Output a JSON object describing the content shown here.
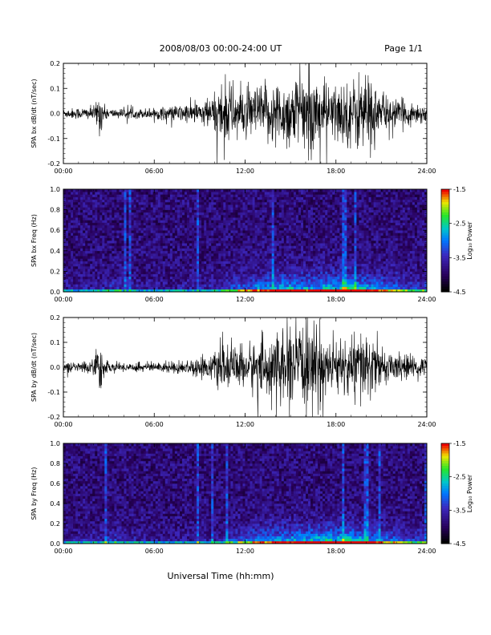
{
  "header": {
    "title": "2008/08/03  00:00-24:00 UT",
    "page": "Page 1/1"
  },
  "xlabel": "Universal Time (hh:mm)",
  "chart_data": [
    {
      "type": "line",
      "ylabel": "SPA bx dB/dt (nT/sec)",
      "xlim": [
        0,
        24
      ],
      "x_ticks": [
        "00:00",
        "06:00",
        "12:00",
        "18:00",
        "24:00"
      ],
      "ylim": [
        -0.2,
        0.2
      ],
      "y_ticks": [
        "-0.2",
        "-0.1",
        "0.0",
        "0.1",
        "0.2"
      ],
      "color": "#000000",
      "series": [
        {
          "x": [
            0,
            1,
            2,
            2.5,
            2.6,
            3,
            4,
            5,
            6,
            7,
            8,
            9,
            10,
            10.5,
            11,
            12,
            13,
            14,
            15,
            16,
            17,
            17.5,
            18,
            19,
            20,
            21,
            22,
            23,
            24
          ],
          "amplitude": [
            0.02,
            0.025,
            0.03,
            0.1,
            0.04,
            0.02,
            0.02,
            0.02,
            0.025,
            0.03,
            0.04,
            0.05,
            0.08,
            0.15,
            0.13,
            0.1,
            0.12,
            0.14,
            0.15,
            0.17,
            0.16,
            0.12,
            0.13,
            0.14,
            0.2,
            0.08,
            0.06,
            0.05,
            0.04
          ]
        }
      ]
    },
    {
      "type": "heatmap",
      "ylabel": "SPA bx Freq (Hz)",
      "xlim": [
        0,
        24
      ],
      "x_ticks": [
        "00:00",
        "06:00",
        "12:00",
        "18:00",
        "24:00"
      ],
      "ylim": [
        0,
        1.0
      ],
      "y_ticks": [
        "0.0",
        "0.2",
        "0.4",
        "0.6",
        "0.8",
        "1.0"
      ],
      "colorbar": {
        "label": "Log₁₀ Power",
        "range": [
          -4.5,
          -1.5
        ],
        "ticks": [
          "-1.5",
          "-2.5",
          "-3.5",
          "-4.5"
        ]
      },
      "activity": [
        0.1,
        0.12,
        0.15,
        0.2,
        0.15,
        0.12,
        0.1,
        0.1,
        0.12,
        0.15,
        0.2,
        0.3,
        0.4,
        0.5,
        0.55,
        0.6,
        0.55,
        0.6,
        0.65,
        0.7,
        0.6,
        0.5,
        0.4,
        0.3,
        0.25
      ]
    },
    {
      "type": "line",
      "ylabel": "SPA by dB/dt (nT/sec)",
      "xlim": [
        0,
        24
      ],
      "x_ticks": [
        "00:00",
        "06:00",
        "12:00",
        "18:00",
        "24:00"
      ],
      "ylim": [
        -0.2,
        0.2
      ],
      "y_ticks": [
        "-0.2",
        "-0.1",
        "0.0",
        "0.1",
        "0.2"
      ],
      "color": "#000000",
      "series": [
        {
          "x": [
            0,
            1,
            2,
            2.5,
            2.6,
            3,
            4,
            5,
            6,
            7,
            8,
            9,
            10,
            10.5,
            11,
            12,
            13,
            14,
            15,
            16,
            17,
            17.5,
            18,
            19,
            20,
            21,
            22,
            23,
            24
          ],
          "amplitude": [
            0.02,
            0.025,
            0.03,
            0.13,
            0.05,
            0.02,
            0.02,
            0.02,
            0.02,
            0.025,
            0.03,
            0.04,
            0.06,
            0.1,
            0.08,
            0.1,
            0.12,
            0.14,
            0.17,
            0.18,
            0.17,
            0.12,
            0.11,
            0.13,
            0.17,
            0.07,
            0.06,
            0.05,
            0.04
          ]
        }
      ]
    },
    {
      "type": "heatmap",
      "ylabel": "SPA by Freq (Hz)",
      "xlim": [
        0,
        24
      ],
      "x_ticks": [
        "00:00",
        "06:00",
        "12:00",
        "18:00",
        "24:00"
      ],
      "ylim": [
        0,
        1.0
      ],
      "y_ticks": [
        "0.0",
        "0.2",
        "0.4",
        "0.6",
        "0.8",
        "1.0"
      ],
      "colorbar": {
        "label": "Log₁₀ Power",
        "range": [
          -4.5,
          -1.5
        ],
        "ticks": [
          "-1.5",
          "-2.5",
          "-3.5",
          "-4.5"
        ]
      },
      "activity": [
        0.1,
        0.12,
        0.15,
        0.2,
        0.15,
        0.12,
        0.1,
        0.1,
        0.1,
        0.12,
        0.15,
        0.25,
        0.35,
        0.45,
        0.5,
        0.55,
        0.6,
        0.65,
        0.65,
        0.7,
        0.6,
        0.5,
        0.4,
        0.3,
        0.25
      ]
    }
  ]
}
